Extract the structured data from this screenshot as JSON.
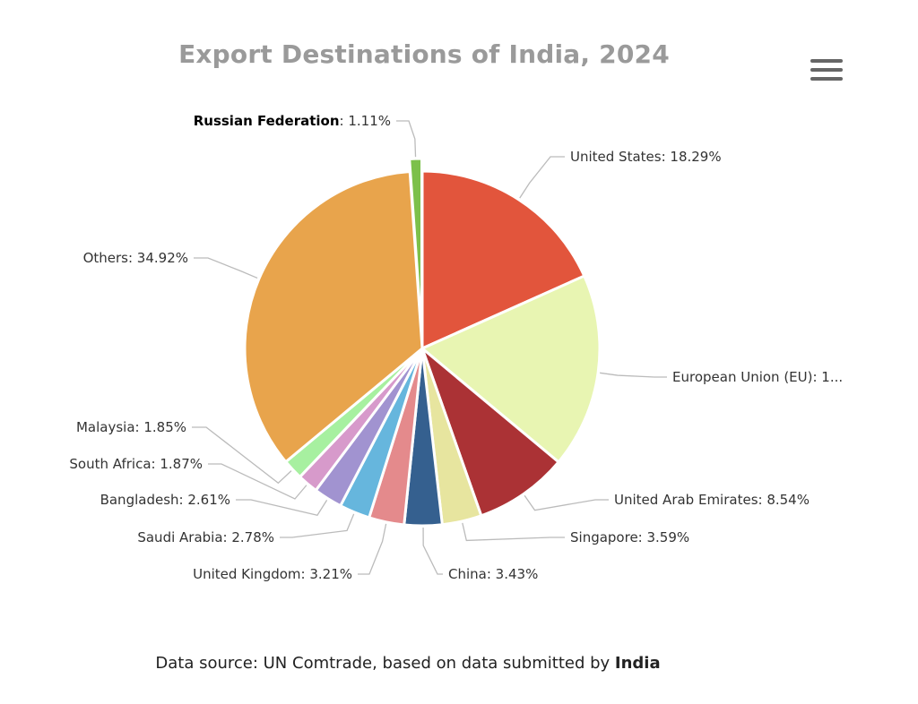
{
  "chart": {
    "title": "Export Destinations of India, 2024",
    "source_prefix": "Data source: UN Comtrade, based on data submitted by ",
    "source_bold": "India"
  },
  "chart_data": {
    "type": "pie",
    "title": "Export Destinations of India, 2024",
    "slices": [
      {
        "name": "United States",
        "value": 18.29,
        "label": "United States: 18.29%",
        "color": "#e2553c"
      },
      {
        "name": "European Union (EU)",
        "value": 17.76,
        "label": "European Union (EU): 1...",
        "color": "#e8f5b2"
      },
      {
        "name": "United Arab Emirates",
        "value": 8.54,
        "label": "United Arab Emirates: 8.54%",
        "color": "#ab3235"
      },
      {
        "name": "Singapore",
        "value": 3.59,
        "label": "Singapore: 3.59%",
        "color": "#e7e59f"
      },
      {
        "name": "China",
        "value": 3.43,
        "label": "China: 3.43%",
        "color": "#35608f"
      },
      {
        "name": "United Kingdom",
        "value": 3.21,
        "label": "United Kingdom: 3.21%",
        "color": "#e48a8c"
      },
      {
        "name": "Saudi Arabia",
        "value": 2.78,
        "label": "Saudi Arabia: 2.78%",
        "color": "#66b6dd"
      },
      {
        "name": "Bangladesh",
        "value": 2.61,
        "label": "Bangladesh: 2.61%",
        "color": "#a193d0"
      },
      {
        "name": "South Africa",
        "value": 1.87,
        "label": "South Africa: 1.87%",
        "color": "#d79acb"
      },
      {
        "name": "Malaysia",
        "value": 1.85,
        "label": "Malaysia: 1.85%",
        "color": "#a7f0a0"
      },
      {
        "name": "Others",
        "value": 34.92,
        "label": "Others: 34.92%",
        "color": "#e8a44c"
      },
      {
        "name": "Russian Federation",
        "value": 1.11,
        "label_name": "Russian Federation",
        "label_value": ": 1.11%",
        "color": "#7cc04a",
        "highlighted": true
      }
    ]
  }
}
